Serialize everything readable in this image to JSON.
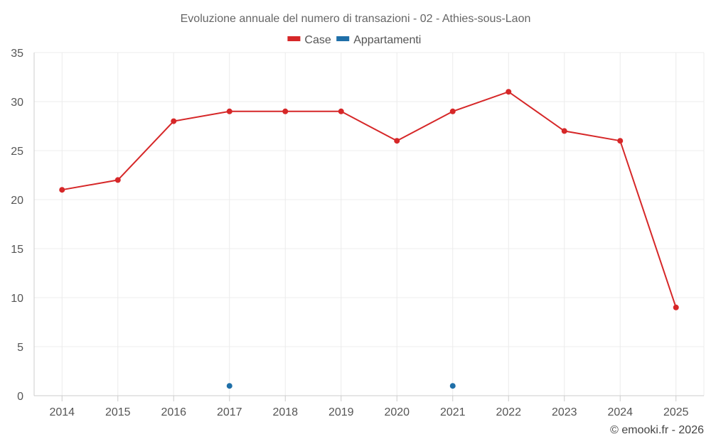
{
  "chart_data": {
    "type": "line",
    "title": "Evoluzione annuale del numero di transazioni - 02 - Athies-sous-Laon",
    "xlabel": "",
    "ylabel": "",
    "categories": [
      "2014",
      "2015",
      "2016",
      "2017",
      "2018",
      "2019",
      "2020",
      "2021",
      "2022",
      "2023",
      "2024",
      "2025"
    ],
    "ylim": [
      0,
      35
    ],
    "yticks": [
      0,
      5,
      10,
      15,
      20,
      25,
      30,
      35
    ],
    "grid": true,
    "legend_position": "top-center",
    "series": [
      {
        "name": "Case",
        "color": "#d62728",
        "values": [
          21,
          22,
          28,
          29,
          29,
          29,
          26,
          29,
          31,
          27,
          26,
          9
        ]
      },
      {
        "name": "Appartamenti",
        "color": "#1f6fa8",
        "values": [
          null,
          null,
          null,
          1,
          null,
          null,
          null,
          1,
          null,
          null,
          null,
          null
        ]
      }
    ]
  },
  "credit": "© emooki.fr - 2026"
}
